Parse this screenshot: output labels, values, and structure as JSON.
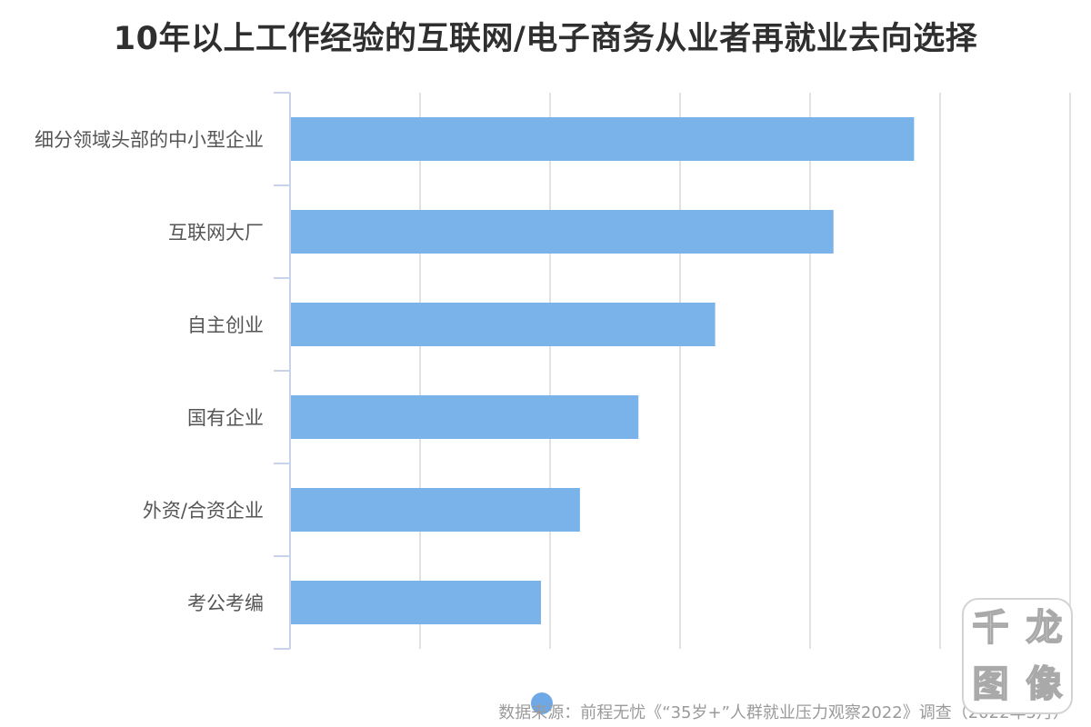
{
  "chart_data": {
    "type": "bar",
    "orientation": "horizontal",
    "title": "10年以上工作经验的互联网/电子商务从业者再就业去向选择",
    "categories": [
      "细分领域头部的中小型企业",
      "互联网大厂",
      "自主创业",
      "国有企业",
      "外资/合资企业",
      "考公考编"
    ],
    "values": [
      48,
      41.8,
      32.7,
      26.8,
      22.3,
      19.3
    ],
    "xlim": [
      0,
      60
    ],
    "x_tick_values": [
      0,
      10,
      20,
      30,
      40,
      50,
      60
    ],
    "x_tick_labels_visible": false,
    "grid": true,
    "legend": "none",
    "bar_color": "#7ab3ea",
    "grid_color": "#e2e2e2",
    "axis_color": "#c9d3e8"
  },
  "source_note": "数据来源：前程无忧《“35岁+”人群就业压力观察2022》调查（2022年5月）",
  "watermark": {
    "chars": [
      "千",
      "龙",
      "图",
      "像"
    ]
  }
}
